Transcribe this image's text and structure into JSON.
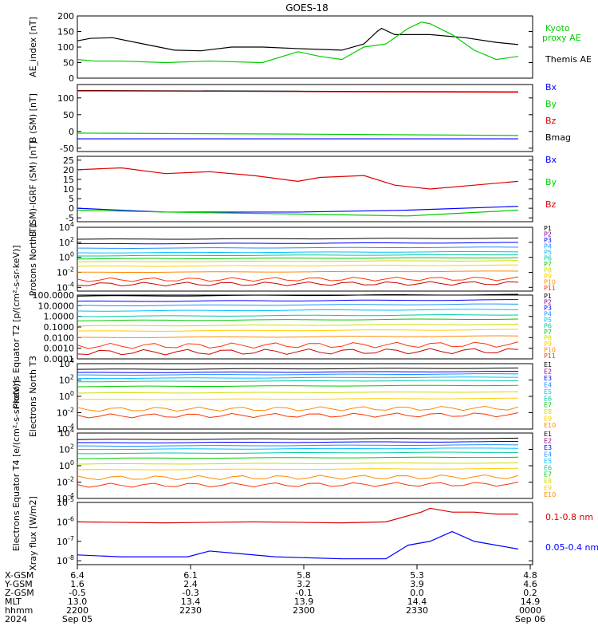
{
  "title": "GOES-18",
  "colors": {
    "black": "#000000",
    "green": "#00cc00",
    "blue": "#0000ff",
    "red": "#dd0000",
    "darkred": "#990000",
    "channels": [
      "#000000",
      "#8b008b",
      "#0000ff",
      "#1e90ff",
      "#00bfff",
      "#00c8a0",
      "#00cc00",
      "#ccdd00",
      "#ffcc00",
      "#ff8800",
      "#ff3300",
      "#cc0000"
    ]
  },
  "x_axis": {
    "row_labels": [
      "X-GSM",
      "Y-GSM",
      "Z-GSM",
      "MLT",
      "hhmm",
      "2024"
    ],
    "columns": [
      [
        "6.4",
        "1.6",
        "-0.5",
        "13.0",
        "2200",
        "Sep 05"
      ],
      [
        "6.1",
        "2.4",
        "-0.3",
        "13.4",
        "2230",
        ""
      ],
      [
        "5.8",
        "3.2",
        "-0.1",
        "13.9",
        "2300",
        ""
      ],
      [
        "5.3",
        "3.9",
        "0.0",
        "14.4",
        "2330",
        ""
      ],
      [
        "4.8",
        "4.6",
        "0.2",
        "14.9",
        "0000",
        "Sep 06"
      ]
    ]
  },
  "chart_data": [
    {
      "type": "line",
      "ylabel": "AE_index [nT]",
      "yticks": [
        "0",
        "50",
        "100",
        "150",
        "200"
      ],
      "ylim": [
        0,
        200
      ],
      "legend": [
        "Kyoto proxy AE",
        "Themis AE"
      ],
      "series": [
        {
          "name": "Themis AE",
          "color": "#000000",
          "x": [
            0,
            0.03,
            0.08,
            0.15,
            0.22,
            0.28,
            0.35,
            0.42,
            0.5,
            0.6,
            0.65,
            0.68,
            0.69,
            0.72,
            0.8,
            0.88,
            0.95,
            1.0
          ],
          "values": [
            120,
            128,
            130,
            110,
            90,
            88,
            100,
            100,
            95,
            90,
            110,
            150,
            160,
            140,
            140,
            130,
            115,
            108
          ]
        },
        {
          "name": "Kyoto proxy AE",
          "color": "#00cc00",
          "x": [
            0,
            0.04,
            0.1,
            0.2,
            0.3,
            0.42,
            0.5,
            0.55,
            0.6,
            0.65,
            0.7,
            0.75,
            0.78,
            0.8,
            0.85,
            0.9,
            0.95,
            1.0
          ],
          "values": [
            60,
            55,
            55,
            50,
            55,
            50,
            85,
            70,
            60,
            100,
            110,
            160,
            180,
            175,
            140,
            90,
            60,
            70
          ]
        }
      ]
    },
    {
      "type": "line",
      "ylabel": "B (SM) [nT]",
      "yticks": [
        "-50",
        "0",
        "50",
        "100"
      ],
      "ylim": [
        -60,
        140
      ],
      "legend": [
        "Bx",
        "By",
        "Bz",
        "Bmag"
      ],
      "series": [
        {
          "name": "Bmag",
          "color": "#000000",
          "x": [
            0,
            0.5,
            1.0
          ],
          "values": [
            122,
            120,
            118
          ]
        },
        {
          "name": "Bz",
          "color": "#dd0000",
          "x": [
            0,
            0.5,
            1.0
          ],
          "values": [
            121,
            119,
            117
          ]
        },
        {
          "name": "By",
          "color": "#00cc00",
          "x": [
            0,
            0.5,
            1.0
          ],
          "values": [
            -5,
            -8,
            -12
          ]
        },
        {
          "name": "Bx",
          "color": "#0000ff",
          "x": [
            0,
            0.5,
            1.0
          ],
          "values": [
            -22,
            -22,
            -22
          ]
        }
      ]
    },
    {
      "type": "line",
      "ylabel": "B (SM)-IGRF (SM) [nT]",
      "yticks": [
        "-5",
        "0",
        "5",
        "10",
        "15",
        "20",
        "25"
      ],
      "ylim": [
        -7,
        27
      ],
      "legend": [
        "Bx",
        "By",
        "Bz"
      ],
      "series": [
        {
          "name": "Bz",
          "color": "#dd0000",
          "x": [
            0,
            0.1,
            0.2,
            0.3,
            0.4,
            0.5,
            0.55,
            0.65,
            0.72,
            0.8,
            0.9,
            1.0
          ],
          "values": [
            20,
            21,
            18,
            19,
            17,
            14,
            16,
            17,
            12,
            10,
            12,
            14
          ]
        },
        {
          "name": "Bx",
          "color": "#0000ff",
          "x": [
            0,
            0.2,
            0.5,
            0.75,
            1.0
          ],
          "values": [
            0,
            -2,
            -2,
            -1,
            1
          ]
        },
        {
          "name": "By",
          "color": "#00cc00",
          "x": [
            0,
            0.2,
            0.5,
            0.75,
            1.0
          ],
          "values": [
            -1,
            -2,
            -3,
            -4,
            -1
          ]
        }
      ]
    },
    {
      "type": "line",
      "ylabel": "Protons North T1",
      "yscale": "log",
      "yticks": [
        "10^-4",
        "10^-2",
        "10^0",
        "10^2",
        "10^4"
      ],
      "ylim_log10": [
        -4.5,
        4
      ],
      "legend": [
        "P1",
        "P2",
        "P3",
        "P4",
        "P5",
        "P6",
        "P7",
        "P8",
        "P9",
        "P10",
        "P11"
      ],
      "series_log10_levels": [
        2.4,
        1.8,
        1.2,
        0.6,
        0.2,
        -0.2,
        -0.6,
        -1.2,
        -2.0,
        -3.0,
        -3.6
      ]
    },
    {
      "type": "line",
      "ylabel": "Protons Equator T2 [p/(cm²-s-sr-keV)]",
      "yscale": "log",
      "yticks": [
        "0.0001",
        "0.0010",
        "0.0100",
        "0.1000",
        "1.0000",
        "10.0000",
        "100.0000"
      ],
      "ylim_log10": [
        -4,
        2
      ],
      "legend": [
        "P1",
        "P2",
        "P3",
        "P4",
        "P5",
        "P6",
        "P7",
        "P8",
        "P9",
        "P10",
        "P11"
      ],
      "series_log10_levels": [
        1.9,
        1.4,
        1.0,
        0.5,
        0.0,
        -0.4,
        -0.9,
        -1.4,
        -2.0,
        -2.8,
        -3.4
      ]
    },
    {
      "type": "line",
      "ylabel": "Electrons North T3",
      "yscale": "log",
      "yticks": [
        "10^-4",
        "10^-2",
        "10^0",
        "10^2",
        "10^4"
      ],
      "ylim_log10": [
        -4,
        4
      ],
      "legend": [
        "E1",
        "E2",
        "E3",
        "E4",
        "E5",
        "E6",
        "E7",
        "E8",
        "E9",
        "E10"
      ],
      "series_log10_levels": [
        3.3,
        2.9,
        2.6,
        2.2,
        1.8,
        1.2,
        0.4,
        -0.4,
        -1.6,
        -2.4
      ]
    },
    {
      "type": "line",
      "ylabel": "Electrons Equator T4 [e/(cm²-s-sr-keV)]",
      "yscale": "log",
      "yticks": [
        "10^-4",
        "10^-2",
        "10^0",
        "10^2",
        "10^4"
      ],
      "ylim_log10": [
        -4,
        4
      ],
      "legend": [
        "E1",
        "E2",
        "E3",
        "E4",
        "E5",
        "E6",
        "E7",
        "E8",
        "E9",
        "E10"
      ],
      "series_log10_levels": [
        3.2,
        2.8,
        2.4,
        2.0,
        1.5,
        0.9,
        0.2,
        -0.5,
        -1.5,
        -2.4
      ]
    },
    {
      "type": "line",
      "ylabel": "Xray flux [W/m2]",
      "yscale": "log",
      "yticks": [
        "10^-8",
        "10^-7",
        "10^-6",
        "10^-5"
      ],
      "ylim_log10": [
        -8.2,
        -5
      ],
      "legend": [
        "0.1-0.8 nm",
        "0.05-0.4 nm"
      ],
      "series": [
        {
          "name": "0.1-0.8 nm",
          "color": "#dd0000",
          "x": [
            0,
            0.2,
            0.4,
            0.6,
            0.7,
            0.78,
            0.8,
            0.85,
            0.9,
            0.95,
            1.0
          ],
          "values_log10": [
            -6.0,
            -6.05,
            -6.0,
            -6.05,
            -6.0,
            -5.5,
            -5.3,
            -5.5,
            -5.5,
            -5.6,
            -5.6
          ]
        },
        {
          "name": "0.05-0.4 nm",
          "color": "#0000ff",
          "x": [
            0,
            0.1,
            0.25,
            0.3,
            0.35,
            0.45,
            0.6,
            0.7,
            0.75,
            0.8,
            0.85,
            0.9,
            0.95,
            1.0
          ],
          "values_log10": [
            -7.7,
            -7.8,
            -7.8,
            -7.5,
            -7.6,
            -7.8,
            -7.9,
            -7.9,
            -7.2,
            -7.0,
            -6.5,
            -7.0,
            -7.2,
            -7.4
          ]
        }
      ]
    }
  ]
}
